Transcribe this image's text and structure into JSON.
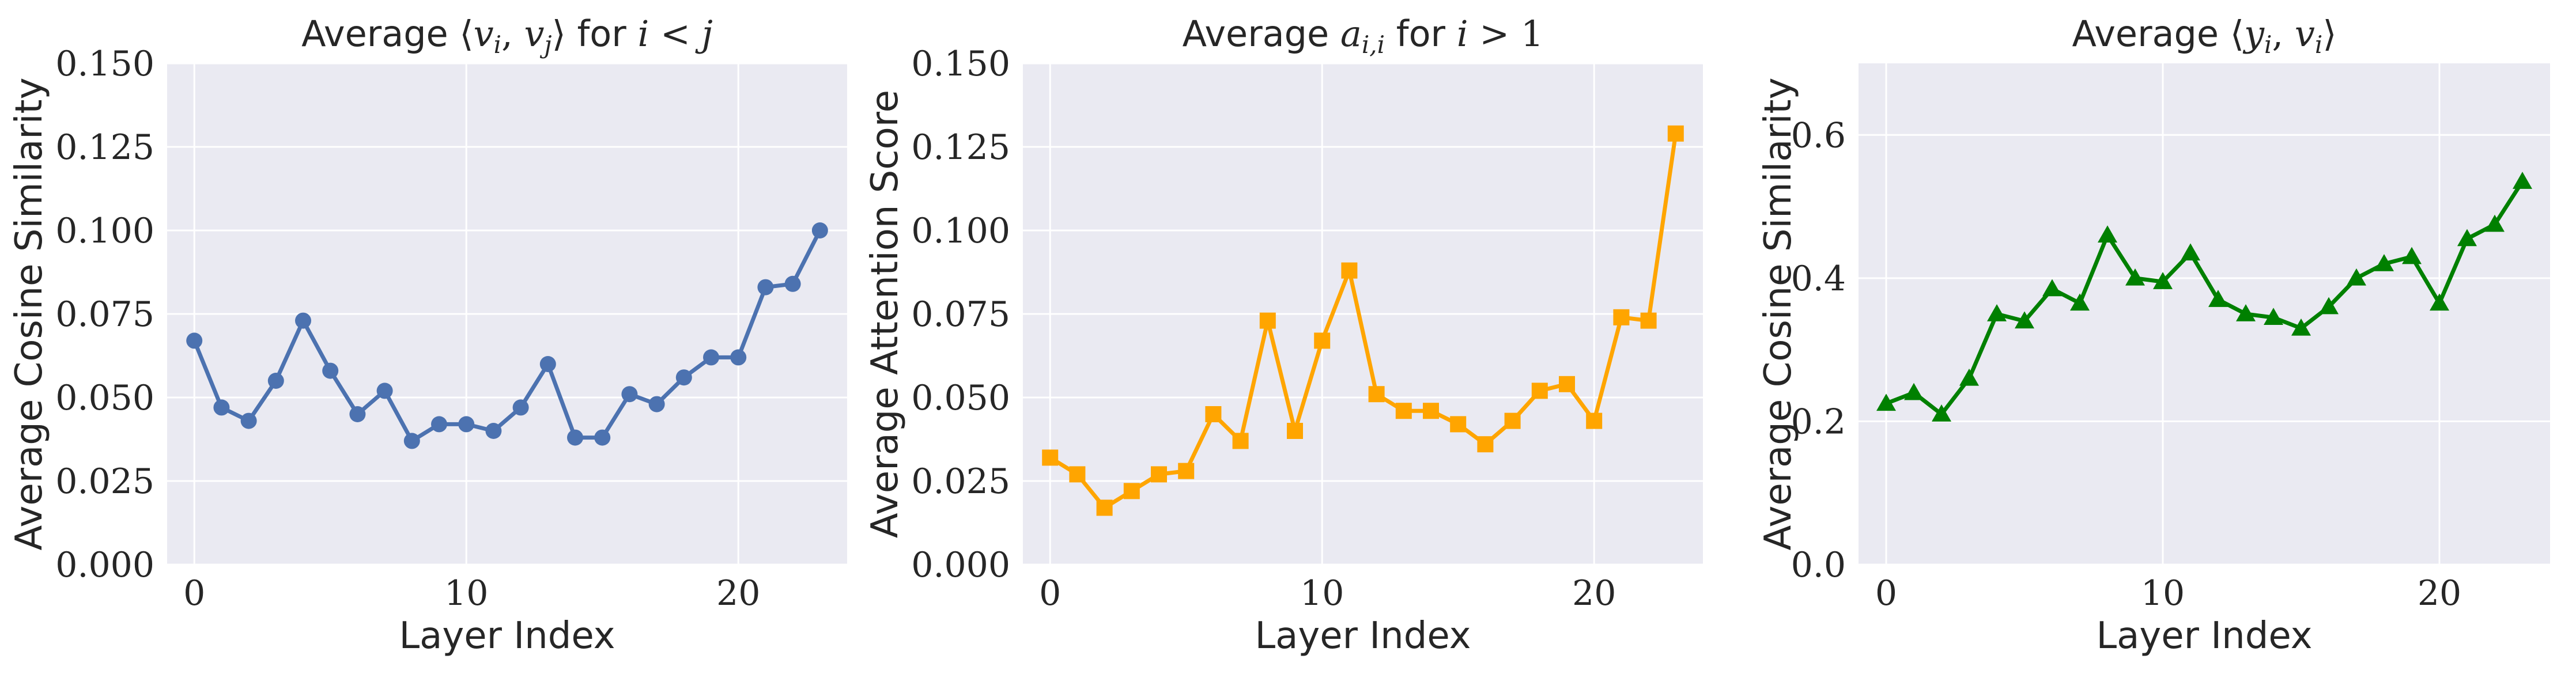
{
  "chart_data": [
    {
      "type": "line",
      "title": "Average ⟨vi, vj⟩ for i < j",
      "title_parts": {
        "prefix": "Average ",
        "open": "⟨",
        "a": "v",
        "a_sub": "i",
        "sep": ", ",
        "b": "v",
        "b_sub": "j",
        "close": "⟩",
        "suffix": " for ",
        "cond_var": "i",
        "cond_op": " < ",
        "cond_rhs": "j"
      },
      "xlabel": "Layer Index",
      "ylabel": "Average Cosine Similarity",
      "xlim": [
        -1,
        24
      ],
      "ylim": [
        0,
        0.15
      ],
      "xticks": [
        0,
        10,
        20
      ],
      "xtick_labels": [
        "0",
        "10",
        "20"
      ],
      "yticks": [
        0,
        0.025,
        0.05,
        0.075,
        0.1,
        0.125,
        0.15
      ],
      "ytick_labels": [
        "0.000",
        "0.025",
        "0.050",
        "0.075",
        "0.100",
        "0.125",
        "0.150"
      ],
      "grid": true,
      "color": "#4c72b0",
      "marker": "circle",
      "x": [
        0,
        1,
        2,
        3,
        4,
        5,
        6,
        7,
        8,
        9,
        10,
        11,
        12,
        13,
        14,
        15,
        16,
        17,
        18,
        19,
        20,
        21,
        22,
        23
      ],
      "y": [
        0.067,
        0.047,
        0.043,
        0.055,
        0.073,
        0.058,
        0.045,
        0.052,
        0.037,
        0.042,
        0.042,
        0.04,
        0.047,
        0.06,
        0.038,
        0.038,
        0.051,
        0.048,
        0.056,
        0.062,
        0.062,
        0.083,
        0.084,
        0.1
      ]
    },
    {
      "type": "line",
      "title": "Average ai,i for i > 1",
      "title_parts": {
        "prefix": "Average ",
        "var": "a",
        "sub": "i,i",
        "suffix": " for ",
        "cond_var": "i",
        "cond_op": " > ",
        "cond_rhs": "1"
      },
      "xlabel": "Layer Index",
      "ylabel": "Average Attention Score",
      "xlim": [
        -1,
        24
      ],
      "ylim": [
        0,
        0.15
      ],
      "xticks": [
        0,
        10,
        20
      ],
      "xtick_labels": [
        "0",
        "10",
        "20"
      ],
      "yticks": [
        0,
        0.025,
        0.05,
        0.075,
        0.1,
        0.125,
        0.15
      ],
      "ytick_labels": [
        "0.000",
        "0.025",
        "0.050",
        "0.075",
        "0.100",
        "0.125",
        "0.150"
      ],
      "grid": true,
      "color": "#ffa500",
      "marker": "square",
      "x": [
        0,
        1,
        2,
        3,
        4,
        5,
        6,
        7,
        8,
        9,
        10,
        11,
        12,
        13,
        14,
        15,
        16,
        17,
        18,
        19,
        20,
        21,
        22,
        23
      ],
      "y": [
        0.032,
        0.027,
        0.017,
        0.022,
        0.027,
        0.028,
        0.045,
        0.037,
        0.073,
        0.04,
        0.067,
        0.088,
        0.051,
        0.046,
        0.046,
        0.042,
        0.036,
        0.043,
        0.052,
        0.054,
        0.043,
        0.074,
        0.073,
        0.129
      ]
    },
    {
      "type": "line",
      "title": "Average ⟨yi, vi⟩",
      "title_parts": {
        "prefix": "Average ",
        "open": "⟨",
        "a": "y",
        "a_sub": "i",
        "sep": ", ",
        "b": "v",
        "b_sub": "i",
        "close": "⟩"
      },
      "xlabel": "Layer Index",
      "ylabel": "Average Cosine Similarity",
      "xlim": [
        -1,
        24
      ],
      "ylim": [
        0,
        0.7
      ],
      "xticks": [
        0,
        10,
        20
      ],
      "xtick_labels": [
        "0",
        "10",
        "20"
      ],
      "yticks": [
        0,
        0.2,
        0.4,
        0.6
      ],
      "ytick_labels": [
        "0.0",
        "0.2",
        "0.4",
        "0.6"
      ],
      "grid": true,
      "color": "#008000",
      "marker": "triangle",
      "x": [
        0,
        1,
        2,
        3,
        4,
        5,
        6,
        7,
        8,
        9,
        10,
        11,
        12,
        13,
        14,
        15,
        16,
        17,
        18,
        19,
        20,
        21,
        22,
        23
      ],
      "y": [
        0.225,
        0.24,
        0.21,
        0.26,
        0.35,
        0.34,
        0.385,
        0.365,
        0.46,
        0.4,
        0.395,
        0.435,
        0.37,
        0.35,
        0.345,
        0.33,
        0.36,
        0.4,
        0.42,
        0.43,
        0.365,
        0.455,
        0.475,
        0.535
      ]
    }
  ]
}
